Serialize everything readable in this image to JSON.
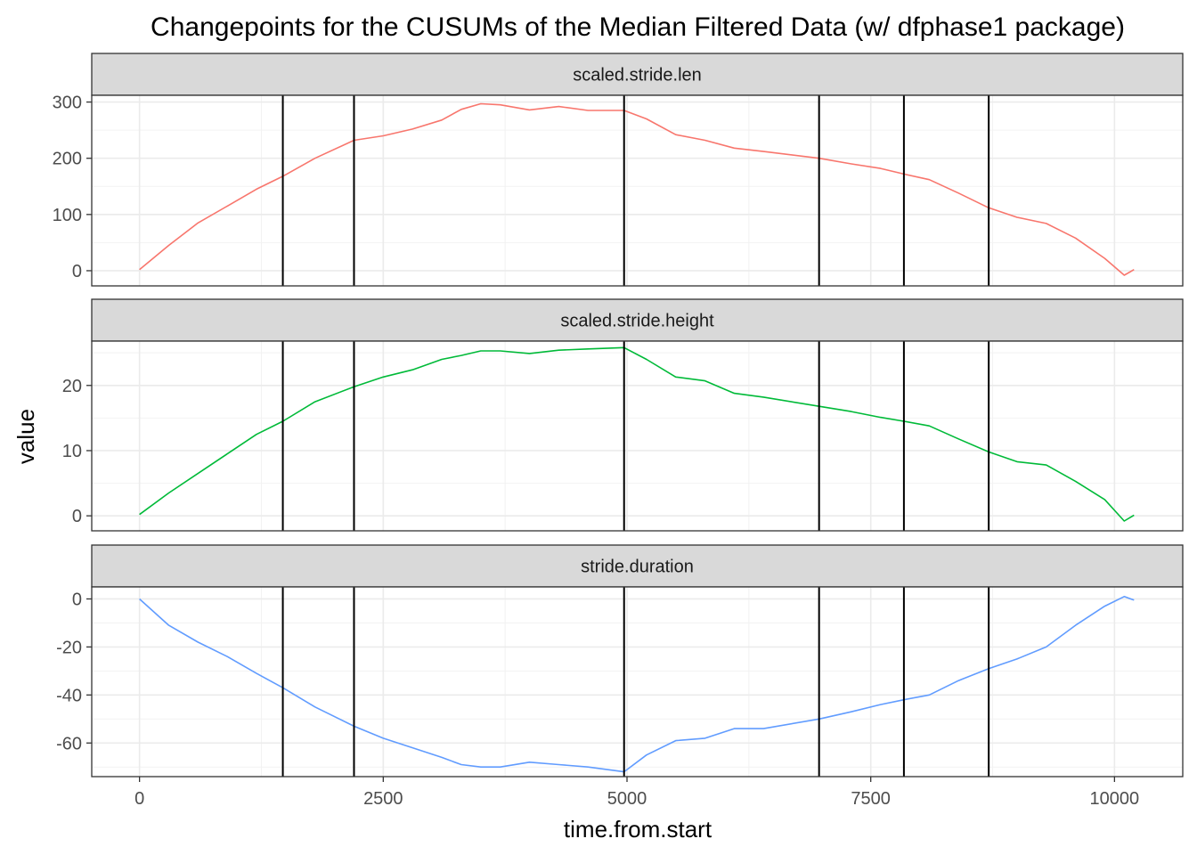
{
  "chart_data": {
    "type": "line",
    "title": "Changepoints for the CUSUMs of the Median Filtered Data (w/ dfphase1 package)",
    "xlabel": "time.from.start",
    "ylabel": "value",
    "grid": true,
    "legend": "none",
    "xlim": [
      -490,
      10700
    ],
    "x_ticks": [
      0,
      2500,
      5000,
      7500,
      10000
    ],
    "x_tick_labels": [
      "0",
      "2500",
      "5000",
      "7500",
      "10000"
    ],
    "changepoints": [
      1470,
      2200,
      4970,
      6970,
      7840,
      8710
    ],
    "changepoint_color": "#000000",
    "panels": [
      {
        "strip_label": "scaled.stride.len",
        "color": "#F8766D",
        "ylim": [
          -27,
          312
        ],
        "y_ticks": [
          0,
          100,
          200,
          300
        ],
        "y_tick_labels": [
          "0",
          "100",
          "200",
          "300"
        ],
        "x": [
          0,
          300,
          600,
          900,
          1200,
          1470,
          1800,
          2200,
          2500,
          2800,
          3100,
          3300,
          3500,
          3700,
          4000,
          4300,
          4600,
          4970,
          5200,
          5500,
          5800,
          6100,
          6400,
          6970,
          7300,
          7600,
          7840,
          8100,
          8400,
          8710,
          9000,
          9300,
          9600,
          9900,
          10100,
          10200
        ],
        "y": [
          2,
          45,
          85,
          115,
          145,
          168,
          200,
          232,
          240,
          252,
          268,
          287,
          297,
          295,
          286,
          292,
          285,
          285,
          270,
          242,
          232,
          218,
          212,
          200,
          190,
          182,
          172,
          162,
          138,
          112,
          95,
          84,
          58,
          22,
          -8,
          2
        ]
      },
      {
        "strip_label": "scaled.stride.height",
        "color": "#00BA38",
        "ylim": [
          -2.3,
          26.8
        ],
        "y_ticks": [
          0,
          10,
          20
        ],
        "y_tick_labels": [
          "0",
          "10",
          "20"
        ],
        "x": [
          0,
          300,
          600,
          900,
          1200,
          1470,
          1800,
          2200,
          2500,
          2800,
          3100,
          3300,
          3500,
          3700,
          4000,
          4300,
          4600,
          4970,
          5200,
          5500,
          5800,
          6100,
          6400,
          6970,
          7300,
          7600,
          7840,
          8100,
          8400,
          8710,
          9000,
          9300,
          9600,
          9900,
          10100,
          10200
        ],
        "y": [
          0.2,
          3.5,
          6.5,
          9.5,
          12.5,
          14.5,
          17.5,
          19.8,
          21.3,
          22.4,
          24.0,
          24.6,
          25.3,
          25.3,
          24.9,
          25.4,
          25.6,
          25.8,
          24.0,
          21.3,
          20.7,
          18.8,
          18.2,
          16.8,
          16.0,
          15.1,
          14.5,
          13.8,
          11.8,
          9.8,
          8.3,
          7.8,
          5.3,
          2.5,
          -0.8,
          0.1
        ]
      },
      {
        "strip_label": "stride.duration",
        "color": "#619CFF",
        "ylim": [
          -74,
          5
        ],
        "y_ticks": [
          -60,
          -40,
          -20,
          0
        ],
        "y_tick_labels": [
          "-60",
          "-40",
          "-20",
          "0"
        ],
        "x": [
          0,
          300,
          600,
          900,
          1200,
          1470,
          1800,
          2200,
          2500,
          2800,
          3100,
          3300,
          3500,
          3700,
          4000,
          4300,
          4600,
          4970,
          5200,
          5500,
          5800,
          6100,
          6400,
          6970,
          7300,
          7600,
          7840,
          8100,
          8400,
          8710,
          9000,
          9300,
          9600,
          9900,
          10100,
          10200
        ],
        "y": [
          0,
          -11,
          -18,
          -24,
          -31,
          -37,
          -45,
          -53,
          -58,
          -62,
          -66,
          -69,
          -70,
          -70,
          -68,
          -69,
          -70,
          -72,
          -65,
          -59,
          -58,
          -54,
          -54,
          -50,
          -47,
          -44,
          -42,
          -40,
          -34,
          -29,
          -25,
          -20,
          -11,
          -3,
          1,
          -0.5
        ]
      }
    ]
  }
}
